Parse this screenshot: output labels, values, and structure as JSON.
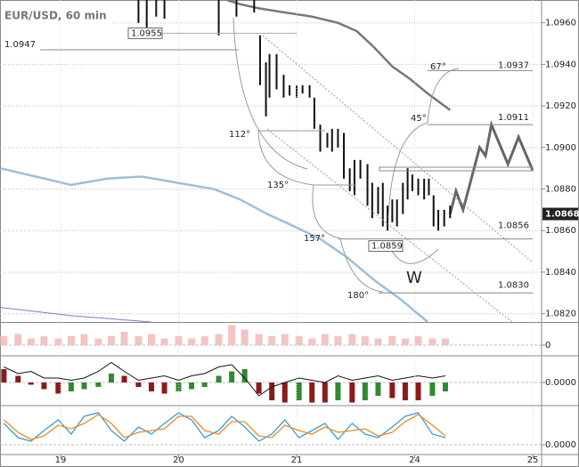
{
  "chart_data": [
    {
      "type": "ohlc",
      "title": "EUR/USD, 60 min",
      "ylim": [
        1.0816,
        1.0971
      ],
      "yticks": [
        {
          "value": 1.082,
          "label": "1.0820"
        },
        {
          "value": 1.084,
          "label": "1.0840"
        },
        {
          "value": 1.086,
          "label": "1.0860"
        },
        {
          "value": 1.088,
          "label": "1.0880"
        },
        {
          "value": 1.09,
          "label": "1.0900"
        },
        {
          "value": 1.092,
          "label": "1.0920"
        },
        {
          "value": 1.094,
          "label": "1.0940"
        },
        {
          "value": 1.096,
          "label": "1.0960"
        }
      ],
      "xlim": [
        -0.513,
        4.075
      ],
      "grid": true,
      "bar_color": "#111111",
      "bars": {
        "x": [
          0.66,
          0.73,
          0.81,
          0.88,
          1.34,
          1.49,
          1.64,
          1.69,
          1.74,
          1.77,
          1.83,
          1.89,
          1.94,
          2.0,
          2.05,
          2.11,
          2.15,
          2.2,
          2.26,
          2.3,
          2.35,
          2.4,
          2.45,
          2.49,
          2.54,
          2.6,
          2.64,
          2.69,
          2.73,
          2.77,
          2.81,
          2.85,
          2.9,
          2.94,
          2.98,
          3.03,
          3.08,
          3.12,
          3.16,
          3.2,
          3.25,
          3.3
        ],
        "high": [
          1.0971,
          1.0971,
          1.0971,
          1.0971,
          1.0971,
          1.0971,
          1.0971,
          1.0954,
          1.0941,
          1.0945,
          1.0945,
          1.0935,
          1.093,
          1.093,
          1.093,
          1.093,
          1.0924,
          1.0911,
          1.0907,
          1.0909,
          1.0909,
          1.0907,
          1.089,
          1.0894,
          1.0894,
          1.0892,
          1.0883,
          1.0881,
          1.0883,
          1.0872,
          1.0875,
          1.0875,
          1.0883,
          1.089,
          1.0887,
          1.0885,
          1.0885,
          1.0885,
          1.0877,
          1.087,
          1.087,
          1.0872
        ],
        "low": [
          1.096,
          1.0956,
          1.0963,
          1.0962,
          1.0954,
          1.0963,
          1.0965,
          1.093,
          1.0915,
          1.0924,
          1.0928,
          1.0924,
          1.0925,
          1.0924,
          1.0926,
          1.0924,
          1.0909,
          1.0898,
          1.09,
          1.0898,
          1.09,
          1.0885,
          1.0879,
          1.0877,
          1.0885,
          1.0872,
          1.0866,
          1.0868,
          1.0862,
          1.086,
          1.0864,
          1.0862,
          1.0868,
          1.0875,
          1.0879,
          1.0877,
          1.0875,
          1.0877,
          1.0862,
          1.086,
          1.0862,
          1.0866
        ]
      },
      "series": [
        {
          "color": "#777777",
          "width": 2.5,
          "x": [
            1.41,
            1.52,
            1.68,
            1.9,
            2.13,
            2.35,
            2.51,
            2.66,
            2.81,
            2.96,
            3.11,
            3.3
          ],
          "values": [
            1.0971,
            1.0969,
            1.0967,
            1.0965,
            1.0963,
            1.096,
            1.0956,
            1.0948,
            1.0939,
            1.0933,
            1.0926,
            1.0918
          ]
        },
        {
          "color": "#9dbedc",
          "width": 2.5,
          "x": [
            -0.51,
            -0.21,
            0.09,
            0.39,
            0.69,
            0.99,
            1.3,
            1.52,
            1.75,
            1.98,
            2.2,
            2.43,
            2.66,
            2.88,
            3.11
          ],
          "values": [
            1.089,
            1.0886,
            1.0882,
            1.0885,
            1.0886,
            1.0883,
            1.088,
            1.0875,
            1.0868,
            1.0862,
            1.0856,
            1.0847,
            1.0836,
            1.0827,
            1.0816
          ]
        },
        {
          "color": "#9a6cc8",
          "width": 1,
          "x": [
            -0.51,
            0.1,
            0.77
          ],
          "values": [
            1.0823,
            1.0819,
            1.0816
          ]
        },
        {
          "color": "#666666",
          "width": 3,
          "x": [
            3.3,
            3.35,
            3.41,
            3.55,
            3.6,
            3.65,
            3.79,
            3.88,
            4.0
          ],
          "values": [
            1.0868,
            1.0879,
            1.087,
            1.09,
            1.0896,
            1.0911,
            1.0892,
            1.0905,
            1.0889
          ]
        }
      ],
      "levels": [
        1.0947,
        1.0955,
        1.0937,
        1.0911,
        1.0856,
        1.0859,
        {
          "value": 1.083,
          "label": "1.0830"
        }
      ],
      "angles": [
        "67°",
        "45°",
        "112°",
        "135°",
        "157°",
        "180°"
      ],
      "pattern": "W",
      "last_price": 1.0868
    },
    {
      "type": "bar",
      "color": "#f2c4c4",
      "ylim": [
        0,
        1
      ],
      "yticks": [
        0
      ],
      "x": [
        -0.48,
        -0.36,
        -0.25,
        -0.14,
        -0.02,
        0.09,
        0.2,
        0.32,
        0.43,
        0.54,
        0.66,
        0.77,
        0.88,
        1.0,
        1.11,
        1.22,
        1.34,
        1.45,
        1.56,
        1.68,
        1.79,
        1.9,
        2.02,
        2.13,
        2.24,
        2.35,
        2.47,
        2.58,
        2.69,
        2.81,
        2.92,
        3.03,
        3.15,
        3.26
      ],
      "values": [
        0.4,
        0.5,
        0.3,
        0.4,
        0.3,
        0.4,
        0.5,
        0.3,
        0.4,
        0.6,
        0.4,
        0.5,
        0.3,
        0.4,
        0.3,
        0.4,
        0.5,
        0.9,
        0.7,
        0.5,
        0.4,
        0.5,
        0.4,
        0.3,
        0.5,
        0.4,
        0.5,
        0.4,
        0.3,
        0.4,
        0.3,
        0.4,
        0.3,
        0.3
      ]
    },
    {
      "type": "histogram",
      "up_color": "#2e8b2e",
      "down_color": "#8b1a1a",
      "ylim": [
        -1,
        1
      ],
      "yticks": [
        {
          "value": 0,
          "label": "0.0000"
        }
      ],
      "x": [
        -0.48,
        -0.36,
        -0.25,
        -0.14,
        -0.02,
        0.09,
        0.2,
        0.32,
        0.43,
        0.54,
        0.66,
        0.77,
        0.88,
        1.0,
        1.11,
        1.22,
        1.34,
        1.45,
        1.56,
        1.68,
        1.79,
        1.9,
        2.02,
        2.13,
        2.24,
        2.35,
        2.47,
        2.58,
        2.69,
        2.81,
        2.92,
        3.03,
        3.15,
        3.26
      ],
      "values": [
        0.6,
        0.3,
        -0.1,
        -0.3,
        -0.5,
        -0.4,
        -0.3,
        -0.2,
        0.4,
        0.3,
        -0.2,
        -0.4,
        -0.5,
        -0.4,
        -0.3,
        -0.2,
        0.3,
        0.5,
        0.6,
        -0.5,
        -0.8,
        -0.9,
        -0.8,
        -0.9,
        -0.9,
        -0.8,
        -0.9,
        -0.8,
        -0.6,
        -0.7,
        -0.8,
        -0.8,
        -0.6,
        -0.4
      ],
      "series": [
        {
          "color": "#111111",
          "width": 1,
          "values": [
            0.7,
            0.4,
            0.5,
            0.2,
            0.2,
            0.1,
            0.2,
            0.5,
            0.9,
            0.5,
            0.1,
            0.2,
            0.3,
            0.1,
            0.3,
            0.4,
            0.7,
            0.8,
            0.2,
            -0.6,
            -0.2,
            0.0,
            0.2,
            0.1,
            0.0,
            0.3,
            0.1,
            0.2,
            0.3,
            0.1,
            0.2,
            0.3,
            0.2,
            0.3
          ]
        }
      ]
    },
    {
      "type": "line",
      "ylim": [
        0,
        100
      ],
      "yticks": [
        {
          "value": 0,
          "label": "0.0000"
        }
      ],
      "xticks": [
        {
          "value": 0,
          "label": "19"
        },
        {
          "value": 1,
          "label": "20"
        },
        {
          "value": 2,
          "label": "21"
        },
        {
          "value": 3,
          "label": "24"
        },
        {
          "value": 4,
          "label": "25"
        }
      ],
      "x": [
        -0.48,
        -0.36,
        -0.25,
        -0.14,
        -0.02,
        0.09,
        0.2,
        0.32,
        0.43,
        0.54,
        0.66,
        0.77,
        0.88,
        1.0,
        1.11,
        1.22,
        1.34,
        1.45,
        1.56,
        1.68,
        1.79,
        1.9,
        2.02,
        2.13,
        2.24,
        2.35,
        2.47,
        2.58,
        2.69,
        2.81,
        2.92,
        3.03,
        3.15,
        3.26
      ],
      "series": [
        {
          "color": "#3a9be0",
          "width": 1.3,
          "values": [
            60,
            20,
            10,
            40,
            70,
            30,
            80,
            90,
            40,
            10,
            50,
            30,
            60,
            90,
            70,
            20,
            40,
            80,
            50,
            10,
            30,
            70,
            20,
            40,
            60,
            15,
            60,
            30,
            20,
            50,
            80,
            90,
            30,
            20
          ]
        },
        {
          "color": "#f08a24",
          "width": 1.3,
          "values": [
            70,
            35,
            15,
            25,
            55,
            45,
            60,
            85,
            60,
            20,
            35,
            40,
            45,
            80,
            80,
            40,
            30,
            65,
            65,
            25,
            20,
            55,
            40,
            30,
            50,
            35,
            40,
            45,
            25,
            35,
            65,
            85,
            55,
            25
          ]
        }
      ]
    }
  ]
}
